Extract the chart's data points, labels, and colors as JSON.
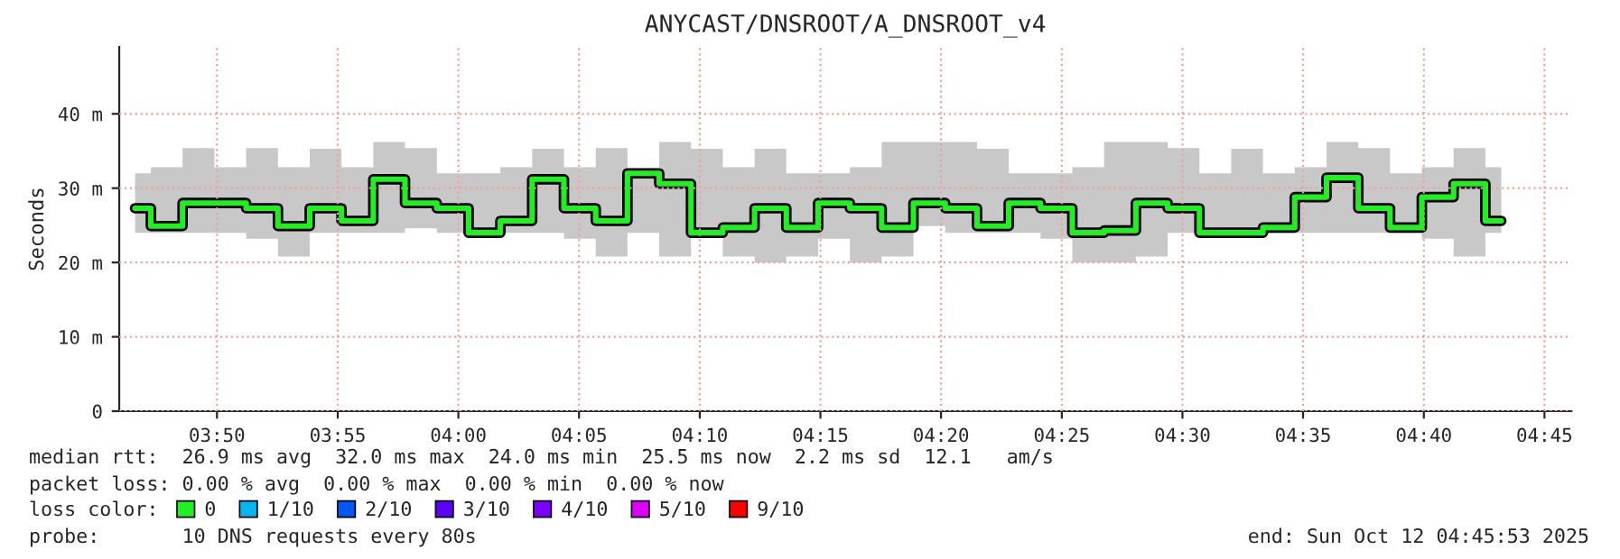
{
  "chart_data": {
    "type": "step",
    "title": "ANYCAST/DNSROOT/A_DNSROOT_v4",
    "ylabel": "Seconds",
    "legend_title": "loss color:",
    "x": [
      3.7767,
      3.7986,
      3.8205,
      3.8425,
      3.8644,
      3.8864,
      3.9083,
      3.9303,
      3.9522,
      3.9741,
      3.9961,
      4.018,
      4.04,
      4.0619,
      4.0839,
      4.1058,
      4.1277,
      4.1497,
      4.1716,
      4.1936,
      4.2155,
      4.2374,
      4.2594,
      4.2813,
      4.3033,
      4.3252,
      4.3472,
      4.3691,
      4.391,
      4.413,
      4.4349,
      4.4569,
      4.4788,
      4.5008,
      4.5227,
      4.5446,
      4.5666,
      4.5885,
      4.6105,
      4.6324,
      4.6543,
      4.6763,
      4.6982,
      4.7202
    ],
    "series": [
      {
        "name": "0",
        "color": "#20f020",
        "values": [
          27.3,
          24.9,
          28.0,
          28.0,
          27.3,
          24.9,
          27.3,
          25.6,
          31.2,
          28.0,
          27.3,
          24.0,
          25.6,
          31.2,
          27.3,
          25.6,
          32.0,
          30.6,
          24.0,
          24.7,
          27.3,
          24.7,
          28.0,
          27.3,
          24.7,
          28.0,
          27.3,
          24.9,
          28.0,
          27.3,
          24.0,
          24.3,
          28.0,
          27.3,
          24.0,
          24.0,
          24.7,
          28.8,
          31.4,
          27.3,
          24.7,
          28.8,
          30.6,
          25.6
        ],
        "lower": [
          24.0,
          24.0,
          24.0,
          24.0,
          23.2,
          20.8,
          24.0,
          24.0,
          24.0,
          24.6,
          24.0,
          23.7,
          24.0,
          24.0,
          23.2,
          20.8,
          24.0,
          20.8,
          24.0,
          20.8,
          20.0,
          20.8,
          23.2,
          20.0,
          20.8,
          24.9,
          24.0,
          24.0,
          24.0,
          23.2,
          20.0,
          20.0,
          20.8,
          24.0,
          24.0,
          24.0,
          24.0,
          24.0,
          24.0,
          24.0,
          24.0,
          23.2,
          20.8,
          24.0
        ],
        "upper": [
          32.0,
          32.8,
          35.4,
          32.8,
          35.4,
          32.8,
          35.3,
          32.8,
          36.2,
          35.4,
          32.0,
          32.0,
          32.8,
          35.3,
          32.8,
          35.4,
          32.0,
          36.2,
          35.3,
          32.8,
          35.3,
          32.0,
          32.0,
          32.8,
          36.2,
          36.2,
          36.2,
          35.3,
          32.0,
          32.0,
          32.8,
          36.2,
          36.2,
          35.4,
          32.0,
          35.3,
          32.0,
          32.8,
          36.2,
          35.4,
          32.0,
          32.8,
          35.4,
          32.8
        ]
      },
      {
        "name": "1/10",
        "color": "#00b8f0",
        "values": [
          null,
          null,
          null,
          null,
          null,
          null,
          null,
          null,
          null,
          null,
          null,
          null,
          null,
          null,
          null,
          null,
          null,
          null,
          null,
          null,
          null,
          null,
          null,
          null,
          null,
          null,
          null,
          null,
          null,
          null,
          null,
          null,
          null,
          null,
          null,
          null,
          null,
          null,
          null,
          null,
          null,
          null,
          null,
          null
        ]
      },
      {
        "name": "2/10",
        "color": "#0059ff",
        "values": [
          null,
          null,
          null,
          null,
          null,
          null,
          null,
          null,
          null,
          null,
          null,
          null,
          null,
          null,
          null,
          null,
          null,
          null,
          null,
          null,
          null,
          null,
          null,
          null,
          null,
          null,
          null,
          null,
          null,
          null,
          null,
          null,
          null,
          null,
          null,
          null,
          null,
          null,
          null,
          null,
          null,
          null,
          null,
          null
        ]
      },
      {
        "name": "3/10",
        "color": "#5e00ff",
        "values": [
          null,
          null,
          null,
          null,
          null,
          null,
          null,
          null,
          null,
          null,
          null,
          null,
          null,
          null,
          null,
          null,
          null,
          null,
          null,
          null,
          null,
          null,
          null,
          null,
          null,
          null,
          null,
          null,
          null,
          null,
          null,
          null,
          null,
          null,
          null,
          null,
          null,
          null,
          null,
          null,
          null,
          null,
          null,
          null
        ]
      },
      {
        "name": "4/10",
        "color": "#7e00ff",
        "values": [
          null,
          null,
          null,
          null,
          null,
          null,
          null,
          null,
          null,
          null,
          null,
          null,
          null,
          null,
          null,
          null,
          null,
          null,
          null,
          null,
          null,
          null,
          null,
          null,
          null,
          null,
          null,
          null,
          null,
          null,
          null,
          null,
          null,
          null,
          null,
          null,
          null,
          null,
          null,
          null,
          null,
          null,
          null,
          null
        ]
      },
      {
        "name": "5/10",
        "color": "#dd00ff",
        "values": [
          null,
          null,
          null,
          null,
          null,
          null,
          null,
          null,
          null,
          null,
          null,
          null,
          null,
          null,
          null,
          null,
          null,
          null,
          null,
          null,
          null,
          null,
          null,
          null,
          null,
          null,
          null,
          null,
          null,
          null,
          null,
          null,
          null,
          null,
          null,
          null,
          null,
          null,
          null,
          null,
          null,
          null,
          null,
          null
        ]
      },
      {
        "name": "9/10",
        "color": "#ff0000",
        "values": [
          null,
          null,
          null,
          null,
          null,
          null,
          null,
          null,
          null,
          null,
          null,
          null,
          null,
          null,
          null,
          null,
          null,
          null,
          null,
          null,
          null,
          null,
          null,
          null,
          null,
          null,
          null,
          null,
          null,
          null,
          null,
          null,
          null,
          null,
          null,
          null,
          null,
          null,
          null,
          null,
          null,
          null,
          null,
          null
        ]
      }
    ],
    "xlim": [
      3.7658,
      4.7686
    ],
    "xticks": [
      {
        "value": 3.8333,
        "label": "03:50"
      },
      {
        "value": 3.9167,
        "label": "03:55"
      },
      {
        "value": 4.0,
        "label": "04:00"
      },
      {
        "value": 4.0833,
        "label": "04:05"
      },
      {
        "value": 4.1667,
        "label": "04:10"
      },
      {
        "value": 4.25,
        "label": "04:15"
      },
      {
        "value": 4.3333,
        "label": "04:20"
      },
      {
        "value": 4.4167,
        "label": "04:25"
      },
      {
        "value": 4.5,
        "label": "04:30"
      },
      {
        "value": 4.5833,
        "label": "04:35"
      },
      {
        "value": 4.6667,
        "label": "04:40"
      },
      {
        "value": 4.75,
        "label": "04:45"
      }
    ],
    "ylim": [
      0,
      49
    ],
    "yticks": [
      0,
      {
        "value": 10,
        "label": "10 m"
      },
      {
        "value": 20,
        "label": "20 m"
      },
      {
        "value": 30,
        "label": "30 m"
      },
      {
        "value": 40,
        "label": "40 m"
      }
    ],
    "grid": true,
    "legend": "bottom left",
    "annotations": [
      "median rtt:  26.9 ms avg  32.0 ms max  24.0 ms min  25.5 ms now  2.2 ms sd  12.1   am/s",
      "packet loss: 0.00 % avg  0.00 % max  0.00 % min  0.00 % now",
      "probe:       10 DNS requests every 80s",
      "end: Sun Oct 12 04:45:53 2025"
    ]
  }
}
